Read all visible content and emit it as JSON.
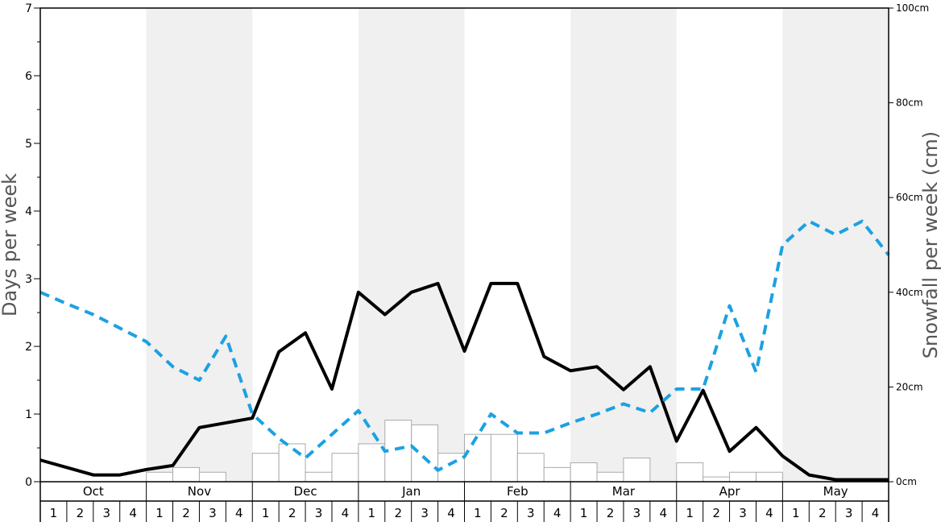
{
  "chart_data": {
    "type": "bar+line",
    "ylabel_left": "Days per week",
    "ylabel_right": "Snowfall per week (cm)",
    "ylim_left": [
      0,
      7
    ],
    "ylim_right": [
      0,
      100
    ],
    "left_ticks": [
      "0",
      "1",
      "2",
      "3",
      "4",
      "5",
      "6",
      "7"
    ],
    "right_ticks": [
      "0cm",
      "20cm",
      "40cm",
      "60cm",
      "80cm",
      "100cm"
    ],
    "right_tick_values": [
      0,
      20,
      40,
      60,
      80,
      100
    ],
    "months": [
      "Oct",
      "Nov",
      "Dec",
      "Jan",
      "Feb",
      "Mar",
      "Apr",
      "May"
    ],
    "weeks": [
      "1",
      "2",
      "3",
      "4"
    ],
    "shaded_months": [
      "Nov",
      "Jan",
      "Mar",
      "May"
    ],
    "snowfall_bars_cm": [
      0,
      0,
      0,
      0,
      2,
      3,
      2,
      0,
      6,
      8,
      2,
      6,
      8,
      13,
      12,
      6,
      10,
      10,
      6,
      3,
      4,
      2,
      5,
      0,
      4,
      1,
      2,
      2,
      0,
      0,
      0,
      0
    ],
    "series": [
      {
        "style": "solid-black",
        "axis": "left",
        "values": [
          0.32,
          0.21,
          0.1,
          0.1,
          0.18,
          0.24,
          0.8,
          0.87,
          0.94,
          1.92,
          2.2,
          1.37,
          2.8,
          2.47,
          2.8,
          2.93,
          1.93,
          2.93,
          2.93,
          1.85,
          1.64,
          1.7,
          1.36,
          1.7,
          0.6,
          1.35,
          0.45,
          0.8,
          0.38,
          0.1,
          0.03,
          0.03,
          0.03
        ]
      },
      {
        "style": "dashed-blue",
        "axis": "left",
        "values": [
          2.8,
          2.63,
          2.47,
          2.27,
          2.07,
          1.7,
          1.5,
          2.15,
          1.0,
          0.64,
          0.35,
          0.7,
          1.05,
          0.45,
          0.53,
          0.17,
          0.37,
          1.0,
          0.72,
          0.72,
          0.87,
          1.0,
          1.15,
          1.02,
          1.37,
          1.37,
          2.6,
          1.62,
          3.5,
          3.85,
          3.65,
          3.85,
          3.35
        ]
      }
    ],
    "grid": false,
    "legend": "none"
  }
}
